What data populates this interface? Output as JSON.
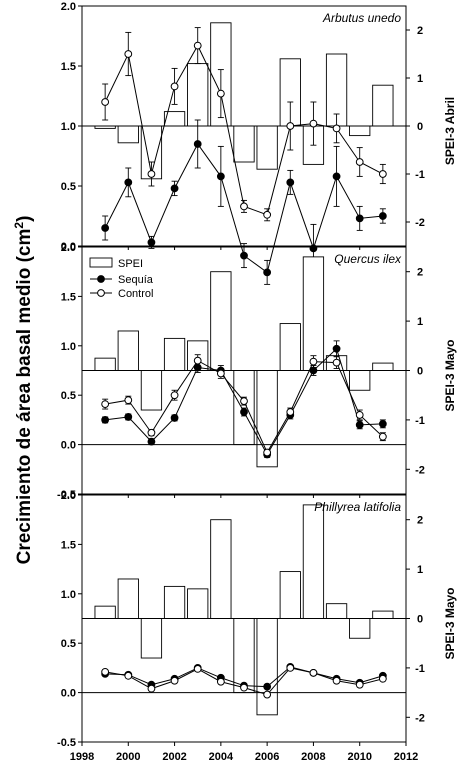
{
  "figure": {
    "ylabel_left_prefix": "Crecimiento de área basal medio (cm",
    "ylabel_left_sup": "2",
    "ylabel_left_suffix": ")",
    "legend": {
      "spei": "SPEI",
      "sequia": "Sequía",
      "control": "Control"
    },
    "xticks": [
      "1998",
      "2000",
      "2002",
      "2004",
      "2006",
      "2008",
      "2010",
      "2012"
    ]
  },
  "chart_data": [
    {
      "type": "bar+line",
      "title": "Arbutus unedo",
      "ylabel_right": "SPEI-3 Abril",
      "ylim": [
        0,
        2
      ],
      "yticks": [
        "0.0",
        "0.5",
        "1.0",
        "1.5",
        "2.0"
      ],
      "y2lim": [
        -2.5,
        2.5
      ],
      "y2ticks": [
        "-2",
        "-1",
        "0",
        "1",
        "2"
      ],
      "xlim": [
        1998,
        2012
      ],
      "spei": {
        "years": [
          1999,
          2000,
          2001,
          2002,
          2003,
          2004,
          2005,
          2006,
          2007,
          2008,
          2009,
          2010,
          2011
        ],
        "values": [
          -0.05,
          -0.35,
          -1.1,
          0.3,
          1.3,
          2.15,
          -0.75,
          -0.9,
          1.4,
          -0.8,
          1.5,
          -0.2,
          0.85
        ]
      },
      "series": [
        {
          "name": "Sequía",
          "years": [
            1999,
            2000,
            2001,
            2002,
            2003,
            2004,
            2005,
            2006,
            2007,
            2008,
            2009,
            2010,
            2011
          ],
          "values": [
            0.15,
            0.53,
            0.03,
            0.48,
            0.85,
            0.58,
            -0.08,
            -0.22,
            0.53,
            -0.02,
            0.58,
            0.23,
            0.25
          ],
          "errors": [
            0.1,
            0.12,
            0.05,
            0.06,
            0.2,
            0.25,
            0.1,
            0.1,
            0.1,
            0.2,
            0.25,
            0.1,
            0.06
          ]
        },
        {
          "name": "Control",
          "years": [
            1999,
            2000,
            2001,
            2002,
            2003,
            2004,
            2005,
            2006,
            2007,
            2008,
            2009,
            2010,
            2011
          ],
          "values": [
            1.2,
            1.6,
            0.6,
            1.33,
            1.67,
            1.27,
            0.33,
            0.26,
            1.0,
            1.02,
            0.98,
            0.7,
            0.6
          ],
          "errors": [
            0.15,
            0.18,
            0.1,
            0.15,
            0.15,
            0.2,
            0.05,
            0.05,
            0.2,
            0.18,
            0.12,
            0.12,
            0.08
          ]
        }
      ]
    },
    {
      "type": "bar+line",
      "title": "Quercus ilex",
      "ylabel_right": "SPEI-3 Mayo",
      "ylim": [
        -0.5,
        2
      ],
      "yticks": [
        "-0.5",
        "0.0",
        "0.5",
        "1.0",
        "1.5",
        "2.0"
      ],
      "y2lim": [
        -2.5,
        2.5
      ],
      "y2ticks": [
        "-2",
        "-1",
        "0",
        "1",
        "2"
      ],
      "xlim": [
        1998,
        2012
      ],
      "spei": {
        "years": [
          1999,
          2000,
          2001,
          2002,
          2003,
          2004,
          2005,
          2006,
          2007,
          2008,
          2009,
          2010,
          2011
        ],
        "values": [
          0.25,
          0.8,
          -0.8,
          0.65,
          0.6,
          2.0,
          -1.5,
          -1.95,
          0.95,
          2.3,
          0.3,
          -0.4,
          0.15
        ]
      },
      "series": [
        {
          "name": "Sequía",
          "years": [
            1999,
            2000,
            2001,
            2002,
            2003,
            2004,
            2005,
            2006,
            2007,
            2008,
            2009,
            2010,
            2011
          ],
          "values": [
            0.25,
            0.28,
            0.03,
            0.27,
            0.78,
            0.75,
            0.33,
            -0.1,
            0.3,
            0.75,
            0.97,
            0.2,
            0.21
          ],
          "errors": [
            0.03,
            0.03,
            0.03,
            0.03,
            0.05,
            0.05,
            0.04,
            0.03,
            0.04,
            0.05,
            0.08,
            0.04,
            0.04
          ]
        },
        {
          "name": "Control",
          "years": [
            1999,
            2000,
            2001,
            2002,
            2003,
            2004,
            2005,
            2006,
            2007,
            2008,
            2009,
            2010,
            2011
          ],
          "values": [
            0.41,
            0.45,
            0.12,
            0.5,
            0.85,
            0.72,
            0.44,
            -0.08,
            0.33,
            0.84,
            0.83,
            0.3,
            0.08
          ],
          "errors": [
            0.05,
            0.04,
            0.03,
            0.05,
            0.06,
            0.05,
            0.04,
            0.03,
            0.04,
            0.06,
            0.06,
            0.05,
            0.04
          ]
        }
      ]
    },
    {
      "type": "bar+line",
      "title": "Phillyrea latifolia",
      "ylabel_right": "SPEI-3 Mayo",
      "ylim": [
        -0.5,
        2
      ],
      "yticks": [
        "-0.5",
        "0.0",
        "0.5",
        "1.0",
        "1.5",
        "2.0"
      ],
      "y2lim": [
        -2.5,
        2.5
      ],
      "y2ticks": [
        "-2",
        "-1",
        "0",
        "1",
        "2"
      ],
      "xlim": [
        1998,
        2012
      ],
      "spei": {
        "years": [
          1999,
          2000,
          2001,
          2002,
          2003,
          2004,
          2005,
          2006,
          2007,
          2008,
          2009,
          2010,
          2011
        ],
        "values": [
          0.25,
          0.8,
          -0.8,
          0.65,
          0.6,
          2.0,
          -1.5,
          -1.95,
          0.95,
          2.3,
          0.3,
          -0.4,
          0.15
        ]
      },
      "series": [
        {
          "name": "Sequía",
          "years": [
            1999,
            2000,
            2001,
            2002,
            2003,
            2004,
            2005,
            2006,
            2007,
            2008,
            2009,
            2010,
            2011
          ],
          "values": [
            0.19,
            0.18,
            0.08,
            0.14,
            0.25,
            0.15,
            0.07,
            0.06,
            0.26,
            0.2,
            0.14,
            0.1,
            0.17
          ],
          "errors": [
            0.02,
            0.02,
            0.02,
            0.02,
            0.02,
            0.02,
            0.02,
            0.02,
            0.02,
            0.02,
            0.02,
            0.02,
            0.02
          ]
        },
        {
          "name": "Control",
          "years": [
            1999,
            2000,
            2001,
            2002,
            2003,
            2004,
            2005,
            2006,
            2007,
            2008,
            2009,
            2010,
            2011
          ],
          "values": [
            0.21,
            0.17,
            0.04,
            0.12,
            0.24,
            0.11,
            0.05,
            -0.02,
            0.25,
            0.2,
            0.12,
            0.08,
            0.14
          ],
          "errors": [
            0.02,
            0.02,
            0.02,
            0.02,
            0.02,
            0.02,
            0.02,
            0.02,
            0.02,
            0.02,
            0.02,
            0.02,
            0.02
          ]
        }
      ]
    }
  ]
}
